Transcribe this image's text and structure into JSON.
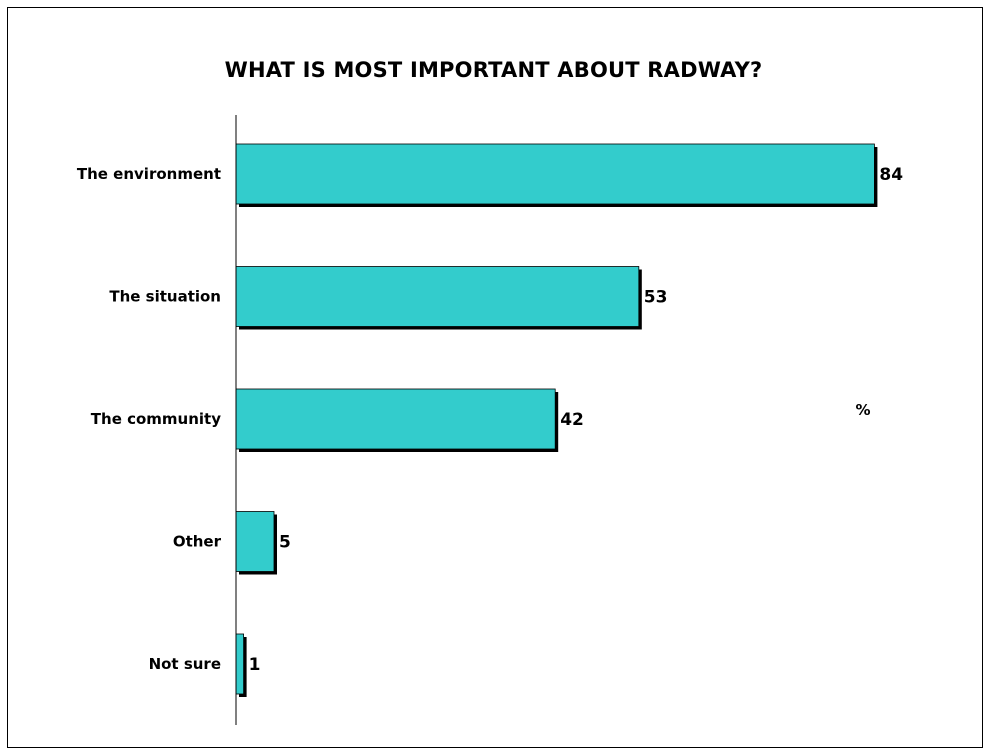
{
  "chart_data": {
    "type": "bar",
    "orientation": "horizontal",
    "title": "WHAT IS MOST IMPORTANT ABOUT RADWAY?",
    "categories": [
      "The environment",
      "The situation",
      "The community",
      "Other",
      "Not sure"
    ],
    "values": [
      84,
      53,
      42,
      5,
      1
    ],
    "unit_label": "%",
    "xlim": [
      0,
      100
    ],
    "grid": false,
    "legend": "none",
    "colors": {
      "bar_fill": "#33CCCC",
      "bar_outline": "#000000",
      "axis": "#000000"
    }
  }
}
